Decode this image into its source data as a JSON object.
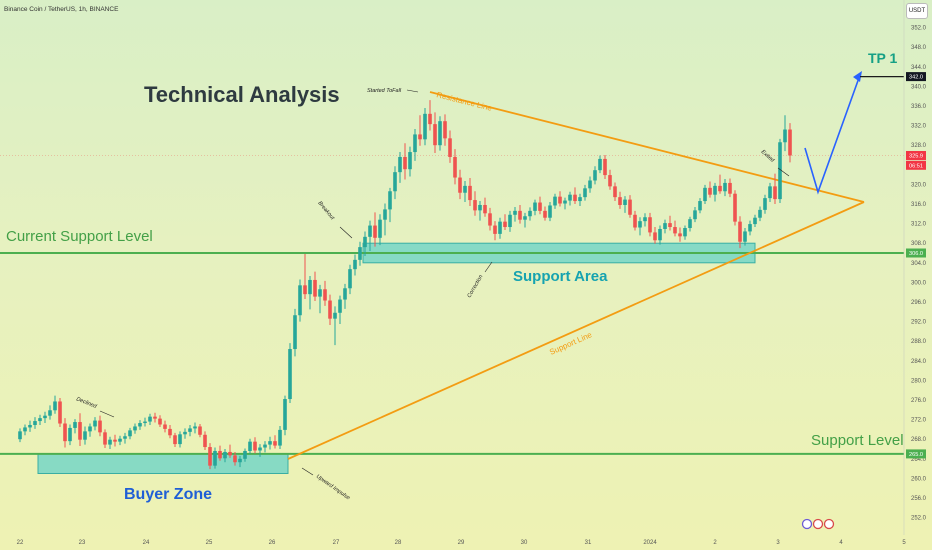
{
  "header": {
    "symbol_line": "Binance Coin / TetherUS, 1h, BINANCE",
    "currency_button": "USDT"
  },
  "chart_data": {
    "type": "candlestick",
    "symbol": "BNB/USDT",
    "interval": "1h",
    "exchange": "BINANCE",
    "y_ticks": [
      252.0,
      256.0,
      260.0,
      264.0,
      268.0,
      272.0,
      276.0,
      280.0,
      284.0,
      288.0,
      292.0,
      296.0,
      300.0,
      304.0,
      308.0,
      312.0,
      316.0,
      320.0,
      324.0,
      328.0,
      332.0,
      336.0,
      340.0,
      344.0,
      348.0,
      352.0
    ],
    "x_ticks": [
      "22",
      "23",
      "24",
      "25",
      "26",
      "27",
      "28",
      "29",
      "30",
      "31",
      "2024",
      "2",
      "3",
      "4",
      "5"
    ],
    "ylim": [
      250,
      354
    ],
    "price_tags": [
      {
        "label": "342.0",
        "value": 342.0,
        "style": "dark"
      },
      {
        "label": "325.9",
        "value": 325.9,
        "style": "red"
      },
      {
        "label": "06:51",
        "value": 323.9,
        "style": "red"
      },
      {
        "label": "306.0",
        "value": 306.0,
        "style": "green"
      },
      {
        "label": "265.0",
        "value": 265.0,
        "style": "green"
      }
    ],
    "candles": [
      [
        22.0,
        268.0,
        270.2,
        267.4,
        269.6
      ],
      [
        22.08,
        269.6,
        271.0,
        268.8,
        270.4
      ],
      [
        22.16,
        270.4,
        271.8,
        269.5,
        270.9
      ],
      [
        22.24,
        270.9,
        272.5,
        270.1,
        271.7
      ],
      [
        22.32,
        271.7,
        273.0,
        270.9,
        272.3
      ],
      [
        22.4,
        272.3,
        273.6,
        271.3,
        272.8
      ],
      [
        22.48,
        272.8,
        274.9,
        272.0,
        273.9
      ],
      [
        22.56,
        273.9,
        276.9,
        273.2,
        275.7
      ],
      [
        22.64,
        275.7,
        276.4,
        270.5,
        271.2
      ],
      [
        22.72,
        271.2,
        272.3,
        266.3,
        267.6
      ],
      [
        22.8,
        267.6,
        271.0,
        266.8,
        270.3
      ],
      [
        22.88,
        270.3,
        272.1,
        269.2,
        271.5
      ],
      [
        22.96,
        271.5,
        273.3,
        266.6,
        267.9
      ],
      [
        23.04,
        267.9,
        270.6,
        266.9,
        269.6
      ],
      [
        23.12,
        269.6,
        271.2,
        268.5,
        270.6
      ],
      [
        23.2,
        270.6,
        272.5,
        269.8,
        271.8
      ],
      [
        23.28,
        271.8,
        272.8,
        268.6,
        269.4
      ],
      [
        23.36,
        269.4,
        270.0,
        266.2,
        266.9
      ],
      [
        23.44,
        266.9,
        268.5,
        266.0,
        267.9
      ],
      [
        23.52,
        267.9,
        268.9,
        266.5,
        267.5
      ],
      [
        23.6,
        267.5,
        268.7,
        266.8,
        268.1
      ],
      [
        23.68,
        268.1,
        269.3,
        267.1,
        268.6
      ],
      [
        23.76,
        268.6,
        270.3,
        268.0,
        269.8
      ],
      [
        23.84,
        269.8,
        271.2,
        269.1,
        270.6
      ],
      [
        23.92,
        270.6,
        271.9,
        269.9,
        271.3
      ],
      [
        24.0,
        271.3,
        272.4,
        270.6,
        271.6
      ],
      [
        24.08,
        271.6,
        273.2,
        270.9,
        272.6
      ],
      [
        24.16,
        272.6,
        273.4,
        271.4,
        272.2
      ],
      [
        24.24,
        272.2,
        272.9,
        270.5,
        271.0
      ],
      [
        24.32,
        271.0,
        271.8,
        269.4,
        270.1
      ],
      [
        24.4,
        270.1,
        270.9,
        268.2,
        268.8
      ],
      [
        24.48,
        268.8,
        269.3,
        266.4,
        267.0
      ],
      [
        24.56,
        267.0,
        269.6,
        266.3,
        269.0
      ],
      [
        24.64,
        269.0,
        270.2,
        268.1,
        269.5
      ],
      [
        24.72,
        269.5,
        270.9,
        268.6,
        270.2
      ],
      [
        24.8,
        270.2,
        271.4,
        269.2,
        270.6
      ],
      [
        24.88,
        270.6,
        271.1,
        268.4,
        268.9
      ],
      [
        24.96,
        268.9,
        269.6,
        265.8,
        266.4
      ],
      [
        25.04,
        266.4,
        267.2,
        261.9,
        262.6
      ],
      [
        25.12,
        262.6,
        266.3,
        262.0,
        265.6
      ],
      [
        25.2,
        265.6,
        266.7,
        263.6,
        264.1
      ],
      [
        25.28,
        264.1,
        266.0,
        263.3,
        265.4
      ],
      [
        25.36,
        265.4,
        266.9,
        264.2,
        264.7
      ],
      [
        25.44,
        264.7,
        265.4,
        262.6,
        263.3
      ],
      [
        25.52,
        263.3,
        264.6,
        262.3,
        264.0
      ],
      [
        25.6,
        264.0,
        266.1,
        263.4,
        265.6
      ],
      [
        25.68,
        265.6,
        268.1,
        265.0,
        267.5
      ],
      [
        25.76,
        267.5,
        268.4,
        265.1,
        265.7
      ],
      [
        25.84,
        265.7,
        267.0,
        264.4,
        266.3
      ],
      [
        25.92,
        266.3,
        267.6,
        265.3,
        266.9
      ],
      [
        26.0,
        266.9,
        268.5,
        265.9,
        267.6
      ],
      [
        26.08,
        267.6,
        268.8,
        266.1,
        266.7
      ],
      [
        26.16,
        266.7,
        270.7,
        266.0,
        269.9
      ],
      [
        26.24,
        269.9,
        276.9,
        268.8,
        276.2
      ],
      [
        26.32,
        276.2,
        287.6,
        275.4,
        286.4
      ],
      [
        26.4,
        286.4,
        294.6,
        284.9,
        293.3
      ],
      [
        26.48,
        293.3,
        300.6,
        292.0,
        299.4
      ],
      [
        26.56,
        299.4,
        305.8,
        296.6,
        297.6
      ],
      [
        26.64,
        297.6,
        301.3,
        294.5,
        300.5
      ],
      [
        26.72,
        300.5,
        302.2,
        296.2,
        297.1
      ],
      [
        26.8,
        297.1,
        299.5,
        293.7,
        298.6
      ],
      [
        26.88,
        298.6,
        300.3,
        295.2,
        296.3
      ],
      [
        26.96,
        296.3,
        297.5,
        291.3,
        292.6
      ],
      [
        27.04,
        292.6,
        295.1,
        287.2,
        293.8
      ],
      [
        27.12,
        293.8,
        297.3,
        291.5,
        296.5
      ],
      [
        27.2,
        296.5,
        299.7,
        294.6,
        298.8
      ],
      [
        27.28,
        298.8,
        303.6,
        297.6,
        302.7
      ],
      [
        27.36,
        302.7,
        305.7,
        301.4,
        304.6
      ],
      [
        27.44,
        304.6,
        308.3,
        303.4,
        307.2
      ],
      [
        27.52,
        307.2,
        310.4,
        305.4,
        309.3
      ],
      [
        27.6,
        309.3,
        312.6,
        306.4,
        311.6
      ],
      [
        27.68,
        311.6,
        314.3,
        307.3,
        309.1
      ],
      [
        27.76,
        309.1,
        313.9,
        307.6,
        312.8
      ],
      [
        27.84,
        312.8,
        316.1,
        309.6,
        314.9
      ],
      [
        27.92,
        314.9,
        319.3,
        312.3,
        318.6
      ],
      [
        28.0,
        318.6,
        323.7,
        317.0,
        322.5
      ],
      [
        28.08,
        322.5,
        326.6,
        320.3,
        325.6
      ],
      [
        28.16,
        325.6,
        328.4,
        321.0,
        323.1
      ],
      [
        28.24,
        323.1,
        327.7,
        321.6,
        326.6
      ],
      [
        28.32,
        326.6,
        331.3,
        324.8,
        330.2
      ],
      [
        28.4,
        330.2,
        334.1,
        327.9,
        329.2
      ],
      [
        28.48,
        329.2,
        335.6,
        328.0,
        334.4
      ],
      [
        28.56,
        334.4,
        337.2,
        331.0,
        332.3
      ],
      [
        28.64,
        332.3,
        334.7,
        326.4,
        328.0
      ],
      [
        28.72,
        328.0,
        333.9,
        326.9,
        332.9
      ],
      [
        28.8,
        332.9,
        334.3,
        327.9,
        329.4
      ],
      [
        28.88,
        329.4,
        331.0,
        324.4,
        325.6
      ],
      [
        28.96,
        325.6,
        327.2,
        320.0,
        321.4
      ],
      [
        29.04,
        321.4,
        323.0,
        317.0,
        318.3
      ],
      [
        29.12,
        318.3,
        320.7,
        316.4,
        319.7
      ],
      [
        29.2,
        319.7,
        321.3,
        315.6,
        316.8
      ],
      [
        29.28,
        316.8,
        318.6,
        313.6,
        314.7
      ],
      [
        29.36,
        314.7,
        316.6,
        312.6,
        315.8
      ],
      [
        29.44,
        315.8,
        317.3,
        313.4,
        314.1
      ],
      [
        29.52,
        314.1,
        315.2,
        310.6,
        311.6
      ],
      [
        29.6,
        311.6,
        312.5,
        308.6,
        309.9
      ],
      [
        29.68,
        309.9,
        313.2,
        308.9,
        312.4
      ],
      [
        29.76,
        312.4,
        313.9,
        310.7,
        311.3
      ],
      [
        29.84,
        311.3,
        314.6,
        310.3,
        313.8
      ],
      [
        29.92,
        313.8,
        315.4,
        312.4,
        314.6
      ],
      [
        30.0,
        314.6,
        315.8,
        312.0,
        312.8
      ],
      [
        30.08,
        312.8,
        314.2,
        311.2,
        313.5
      ],
      [
        30.16,
        313.5,
        315.3,
        312.6,
        314.6
      ],
      [
        30.24,
        314.6,
        316.9,
        313.7,
        316.3
      ],
      [
        30.32,
        316.3,
        317.5,
        313.9,
        314.6
      ],
      [
        30.4,
        314.6,
        315.5,
        312.6,
        313.2
      ],
      [
        30.48,
        313.2,
        316.4,
        312.5,
        315.7
      ],
      [
        30.56,
        315.7,
        318.1,
        315.0,
        317.5
      ],
      [
        30.64,
        317.5,
        318.6,
        315.5,
        316.1
      ],
      [
        30.72,
        316.1,
        317.3,
        314.9,
        316.7
      ],
      [
        30.8,
        316.7,
        318.5,
        315.7,
        317.9
      ],
      [
        30.88,
        317.9,
        319.4,
        316.0,
        316.6
      ],
      [
        30.96,
        316.6,
        318.1,
        315.6,
        317.4
      ],
      [
        31.04,
        317.4,
        319.9,
        316.7,
        319.2
      ],
      [
        31.12,
        319.2,
        321.6,
        318.3,
        320.8
      ],
      [
        31.2,
        320.8,
        323.7,
        320.0,
        322.9
      ],
      [
        31.28,
        322.9,
        325.9,
        322.3,
        325.2
      ],
      [
        31.36,
        325.2,
        326.0,
        321.1,
        321.9
      ],
      [
        31.44,
        321.9,
        323.0,
        318.9,
        319.6
      ],
      [
        31.52,
        319.6,
        320.4,
        316.6,
        317.4
      ],
      [
        31.6,
        317.4,
        318.5,
        315.0,
        315.8
      ],
      [
        31.68,
        315.8,
        317.6,
        314.2,
        316.9
      ],
      [
        31.76,
        316.9,
        317.8,
        313.2,
        313.8
      ],
      [
        31.84,
        313.8,
        314.6,
        310.6,
        311.2
      ],
      [
        31.92,
        311.2,
        313.3,
        309.6,
        312.5
      ],
      [
        32.0,
        312.5,
        314.1,
        311.4,
        313.3
      ],
      [
        32.08,
        313.3,
        314.2,
        309.4,
        310.2
      ],
      [
        32.16,
        310.2,
        311.3,
        307.9,
        308.6
      ],
      [
        32.24,
        308.6,
        311.6,
        307.7,
        310.9
      ],
      [
        32.32,
        310.9,
        312.8,
        310.0,
        312.1
      ],
      [
        32.4,
        312.1,
        313.6,
        310.6,
        311.3
      ],
      [
        32.48,
        311.3,
        312.6,
        309.4,
        310.0
      ],
      [
        32.56,
        310.0,
        311.2,
        308.3,
        309.4
      ],
      [
        32.64,
        309.4,
        311.6,
        308.7,
        311.1
      ],
      [
        32.72,
        311.1,
        313.4,
        310.4,
        312.9
      ],
      [
        32.8,
        312.9,
        315.4,
        312.3,
        314.7
      ],
      [
        32.88,
        314.7,
        317.2,
        314.1,
        316.6
      ],
      [
        32.96,
        316.6,
        319.9,
        316.0,
        319.3
      ],
      [
        33.04,
        319.3,
        320.6,
        317.3,
        317.9
      ],
      [
        33.12,
        317.9,
        320.3,
        316.5,
        319.7
      ],
      [
        33.2,
        319.7,
        322.0,
        318.1,
        318.6
      ],
      [
        33.28,
        318.6,
        321.1,
        317.6,
        320.3
      ],
      [
        33.36,
        320.3,
        321.2,
        317.4,
        318.1
      ],
      [
        33.44,
        318.1,
        318.8,
        311.6,
        312.4
      ],
      [
        33.52,
        312.4,
        313.5,
        307.0,
        308.3
      ],
      [
        33.6,
        308.3,
        311.1,
        307.5,
        310.4
      ],
      [
        33.68,
        310.4,
        312.6,
        309.6,
        311.9
      ],
      [
        33.76,
        311.9,
        313.8,
        311.3,
        313.2
      ],
      [
        33.84,
        313.2,
        315.5,
        312.5,
        314.8
      ],
      [
        33.92,
        314.8,
        317.9,
        314.0,
        317.2
      ],
      [
        34.0,
        317.2,
        320.3,
        316.4,
        319.6
      ],
      [
        34.08,
        319.6,
        322.2,
        316.0,
        317.0
      ],
      [
        34.16,
        317.0,
        329.3,
        316.2,
        328.6
      ],
      [
        34.24,
        328.6,
        334.1,
        326.8,
        331.2
      ],
      [
        34.32,
        331.2,
        332.5,
        324.5,
        325.9
      ]
    ]
  },
  "annotations": {
    "title": "Technical Analysis",
    "current_support": "Current Support Level",
    "support_level": "Support Level",
    "support_area": "Support Area",
    "buyer_zone": "Buyer Zone",
    "resistance_line": "Resistance Line",
    "support_line": "Support Line",
    "tp1": "TP 1",
    "started_to_fall": "Started ToFall",
    "breakout": "Breakout",
    "correction": "Correction",
    "declined": "Declined",
    "exited": "Exited",
    "upward_impulse": "Upward Impulse"
  },
  "levels": {
    "current_support": 306.0,
    "support_level": 265.0,
    "tp1": 342.0,
    "support_area": [
      304.0,
      308.0
    ],
    "buyer_zone": [
      261.0,
      265.0
    ]
  },
  "colors": {
    "bull": "#26a69a",
    "bear": "#ef5350",
    "support": "#4caf50",
    "trendline": "#f39c12",
    "projection": "#2962ff",
    "zone_fill": "#66d2c8",
    "label_teal": "#16a3b0",
    "label_blue": "#1f5fd6"
  }
}
